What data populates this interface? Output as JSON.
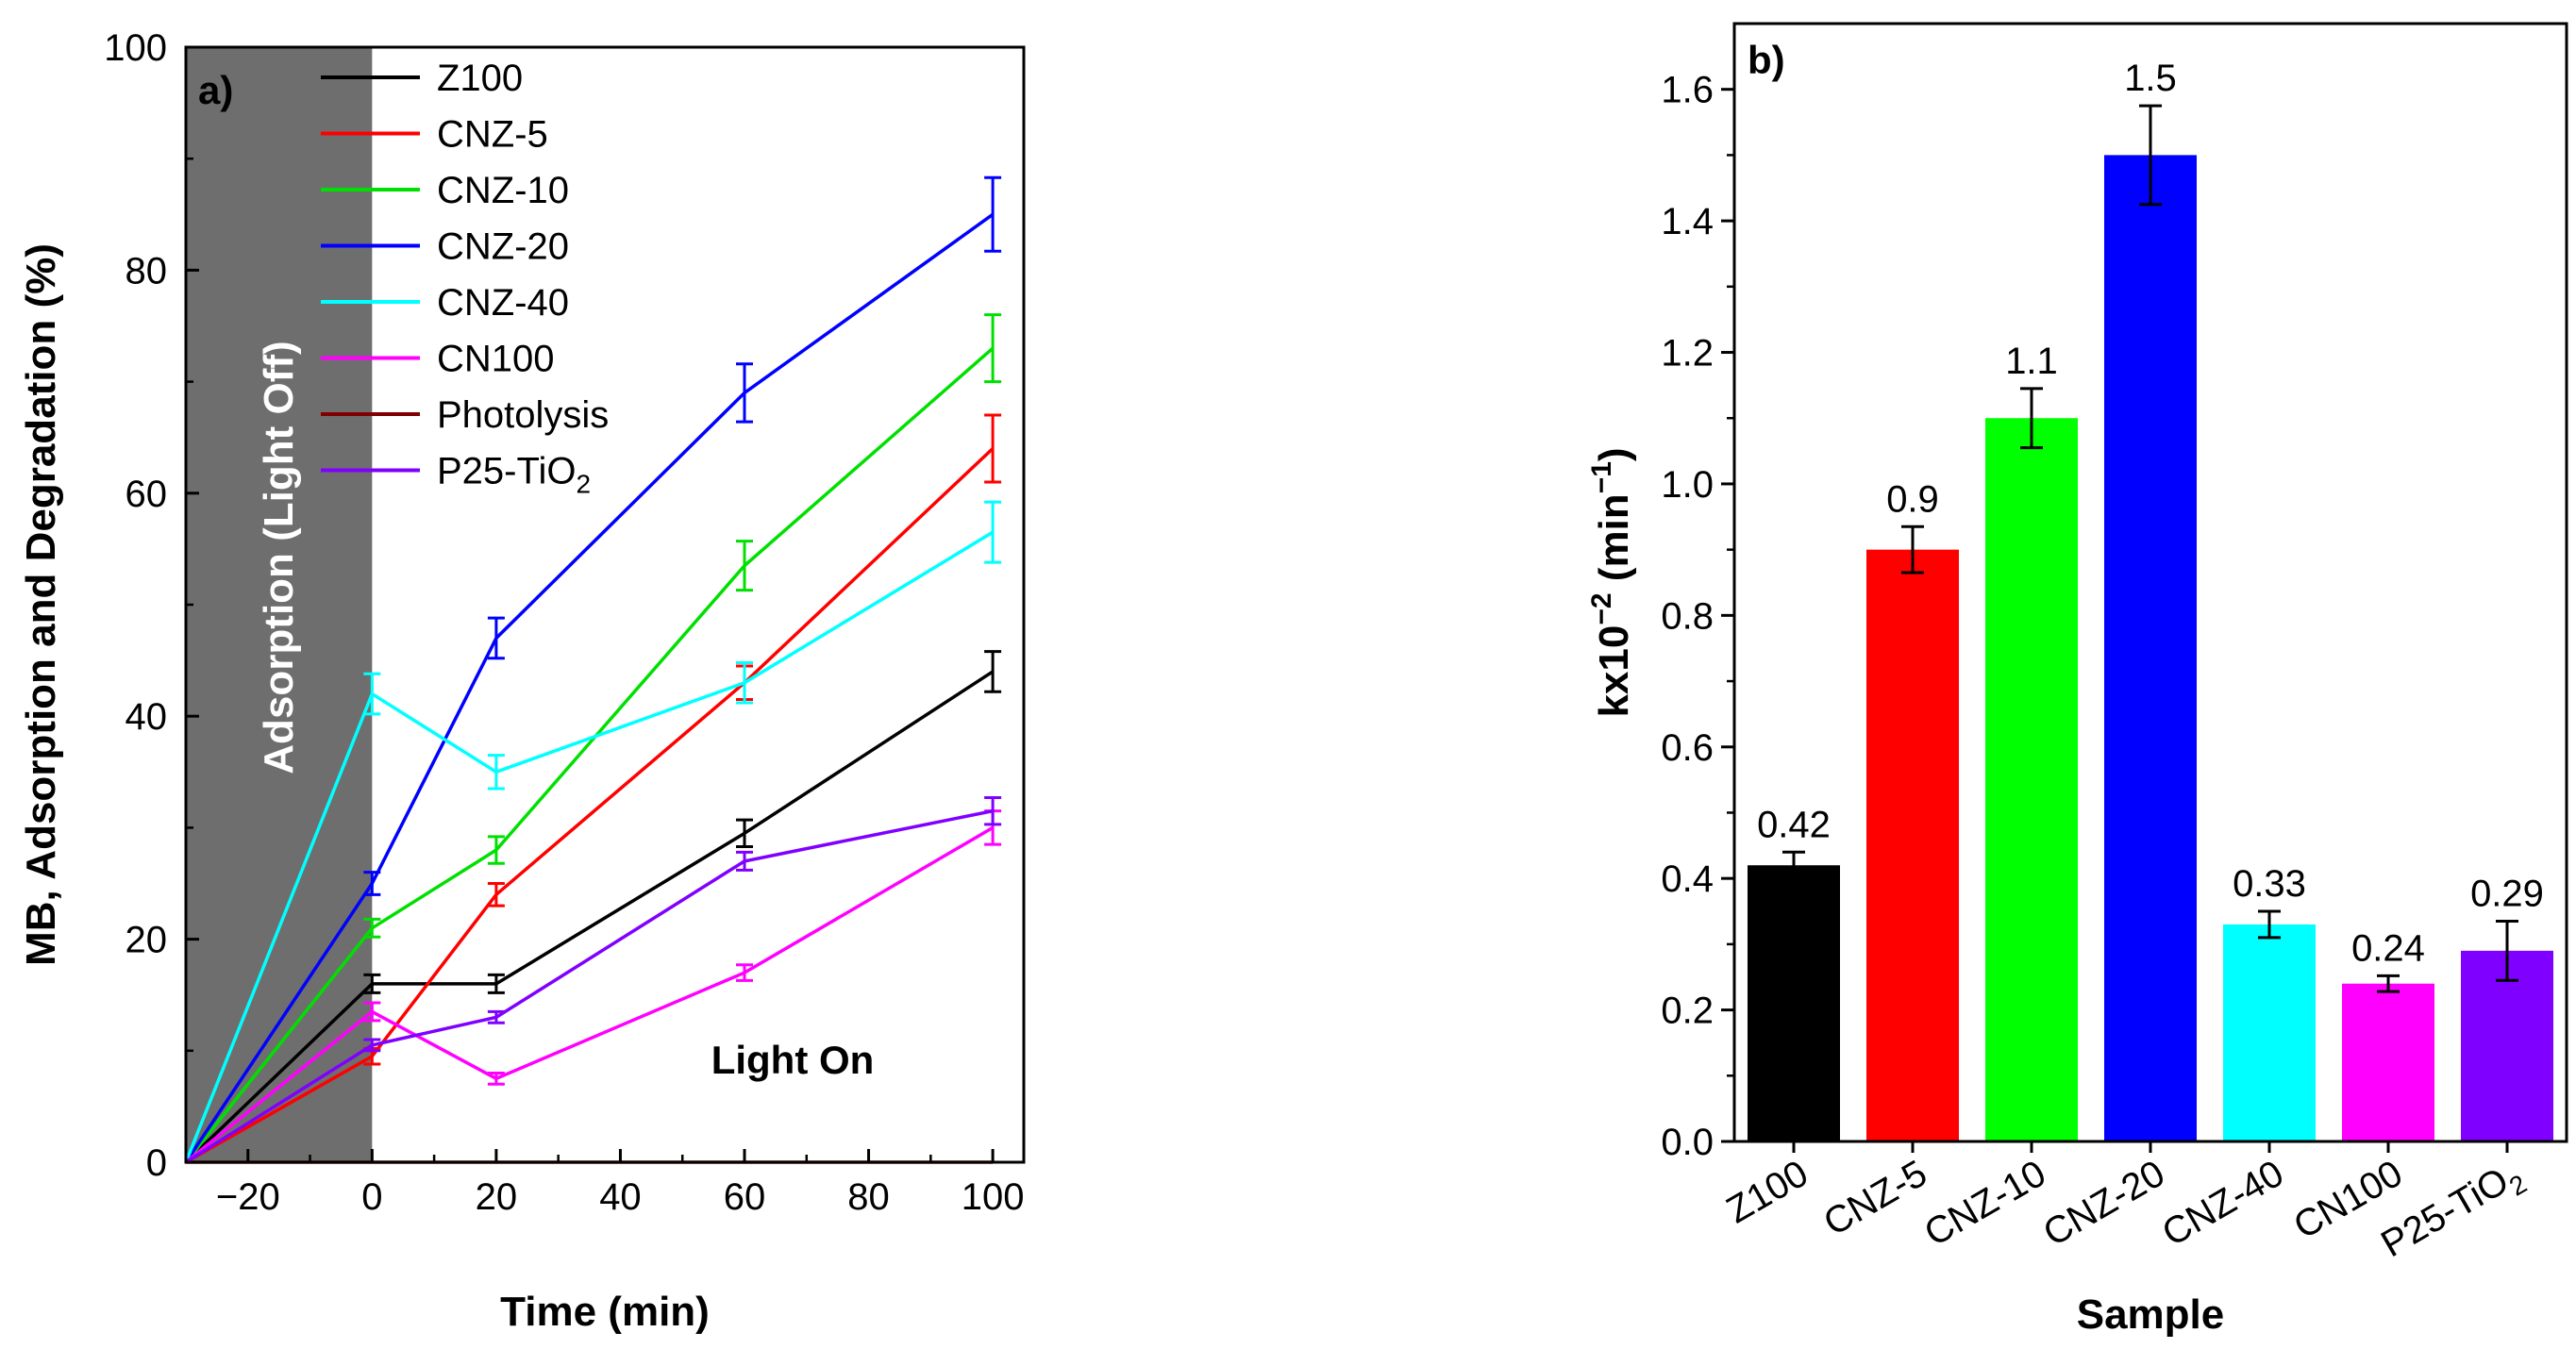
{
  "chart_data": [
    {
      "panel_label": "a)",
      "type": "line",
      "xlabel": "Time (min)",
      "ylabel": "MB, Adsorption and Degradation (%)",
      "xlim": [
        -30,
        105
      ],
      "ylim": [
        0,
        100
      ],
      "xticks": [
        -20,
        0,
        20,
        40,
        60,
        80,
        100
      ],
      "yticks": [
        0,
        20,
        40,
        60,
        80,
        100
      ],
      "x": [
        -30,
        0,
        20,
        60,
        100
      ],
      "shaded_region": {
        "x": [
          -30,
          0
        ],
        "label": "Adsorption (Light Off)",
        "color": "#6e6e6e"
      },
      "annotation": "Light On",
      "legend_position": "top",
      "series": [
        {
          "name": "Z100",
          "name_main": "Z100",
          "name_sub": "",
          "color": "#000000",
          "values": [
            0,
            16,
            16,
            29.5,
            44
          ],
          "errors": [
            0,
            0.8,
            0.8,
            1.2,
            1.8
          ]
        },
        {
          "name": "CNZ-5",
          "name_main": "CNZ-5",
          "name_sub": "",
          "color": "#ff0000",
          "values": [
            0,
            9.5,
            24,
            43,
            64
          ],
          "errors": [
            0,
            0.7,
            1.0,
            1.5,
            3.0
          ]
        },
        {
          "name": "CNZ-10",
          "name_main": "CNZ-10",
          "name_sub": "",
          "color": "#00e000",
          "values": [
            0,
            21,
            28,
            53.5,
            73
          ],
          "errors": [
            0,
            0.8,
            1.2,
            2.2,
            3.0
          ]
        },
        {
          "name": "CNZ-20",
          "name_main": "CNZ-20",
          "name_sub": "",
          "color": "#0000ff",
          "values": [
            0,
            25,
            47,
            69,
            85
          ],
          "errors": [
            0,
            1.0,
            1.8,
            2.6,
            3.3
          ]
        },
        {
          "name": "CNZ-40",
          "name_main": "CNZ-40",
          "name_sub": "",
          "color": "#00ffff",
          "values": [
            0,
            42,
            35,
            43,
            56.5
          ],
          "errors": [
            0,
            1.8,
            1.5,
            1.8,
            2.7
          ]
        },
        {
          "name": "CN100",
          "name_main": "CN100",
          "name_sub": "",
          "color": "#ff00ff",
          "values": [
            0,
            13.5,
            7.5,
            17,
            30
          ],
          "errors": [
            0,
            0.8,
            0.5,
            0.7,
            1.5
          ]
        },
        {
          "name": "Photolysis",
          "name_main": "Photolysis",
          "name_sub": "",
          "color": "#800000",
          "values": [
            0,
            0,
            0,
            0,
            0
          ],
          "errors": [
            0,
            0,
            0,
            0,
            0
          ]
        },
        {
          "name": "P25-TiO2",
          "name_main": "P25-TiO",
          "name_sub": "2",
          "color": "#8000ff",
          "values": [
            0,
            10.5,
            13,
            27,
            31.5
          ],
          "errors": [
            0,
            0.5,
            0.5,
            0.8,
            1.2
          ]
        }
      ]
    },
    {
      "panel_label": "b)",
      "type": "bar",
      "xlabel": "Sample",
      "ylabel_main": "kx10",
      "ylabel_exp": "−2",
      "ylabel_unit": " (min",
      "ylabel_unit_exp": "−1",
      "ylabel_close": ")",
      "ylim": [
        0,
        1.7
      ],
      "yticks": [
        "0.0",
        "0.2",
        "0.4",
        "0.6",
        "0.8",
        "1.0",
        "1.2",
        "1.4",
        "1.6"
      ],
      "categories": [
        {
          "main": "Z100",
          "sub": ""
        },
        {
          "main": "CNZ-5",
          "sub": ""
        },
        {
          "main": "CNZ-10",
          "sub": ""
        },
        {
          "main": "CNZ-20",
          "sub": ""
        },
        {
          "main": "CNZ-40",
          "sub": ""
        },
        {
          "main": "CN100",
          "sub": ""
        },
        {
          "main": "P25-TiO",
          "sub": "2"
        }
      ],
      "values": [
        0.42,
        0.9,
        1.1,
        1.5,
        0.33,
        0.24,
        0.29
      ],
      "labels": [
        "0.42",
        "0.9",
        "1.1",
        "1.5",
        "0.33",
        "0.24",
        "0.29"
      ],
      "errors": [
        0.02,
        0.035,
        0.045,
        0.075,
        0.02,
        0.012,
        0.045
      ],
      "colors": [
        "#000000",
        "#ff0000",
        "#00ff00",
        "#0000ff",
        "#00ffff",
        "#ff00ff",
        "#8000ff"
      ]
    }
  ]
}
